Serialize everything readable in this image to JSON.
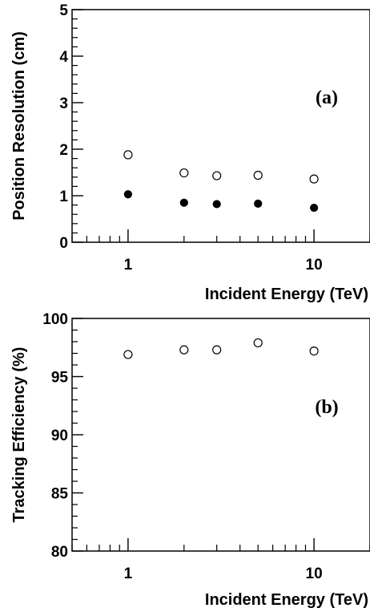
{
  "chart_data": [
    {
      "type": "scatter",
      "panel_label": "(a)",
      "xlabel": "Incident Energy (TeV)",
      "ylabel": "Position Resolution (cm)",
      "xscale": "log",
      "xlim": [
        0.5,
        20
      ],
      "ylim": [
        0,
        5
      ],
      "xticks": [
        "1",
        "10"
      ],
      "yticks": [
        "0",
        "1",
        "2",
        "3",
        "4",
        "5"
      ],
      "grid": false,
      "series": [
        {
          "marker": "open-circle",
          "x": [
            1,
            2,
            3,
            5,
            10
          ],
          "y": [
            1.88,
            1.49,
            1.43,
            1.44,
            1.36
          ],
          "yerr": [
            0.08,
            0.03,
            0.03,
            0.03,
            0.03
          ]
        },
        {
          "marker": "filled-circle",
          "x": [
            1,
            2,
            3,
            5,
            10
          ],
          "y": [
            1.03,
            0.85,
            0.82,
            0.83,
            0.74
          ],
          "yerr": [
            0.03,
            0.02,
            0.02,
            0.02,
            0.02
          ]
        }
      ]
    },
    {
      "type": "scatter",
      "panel_label": "(b)",
      "xlabel": "Incident Energy (TeV)",
      "ylabel": "Tracking Efficiency (%)",
      "xscale": "log",
      "xlim": [
        0.5,
        20
      ],
      "ylim": [
        80,
        100
      ],
      "xticks": [
        "1",
        "10"
      ],
      "yticks": [
        "80",
        "85",
        "90",
        "95",
        "100"
      ],
      "grid": false,
      "series": [
        {
          "marker": "open-circle",
          "x": [
            1,
            2,
            3,
            5,
            10
          ],
          "y": [
            96.9,
            97.3,
            97.3,
            97.9,
            97.2
          ],
          "yerr": [
            0.1,
            0.1,
            0.1,
            0.1,
            0.1
          ]
        }
      ]
    }
  ]
}
